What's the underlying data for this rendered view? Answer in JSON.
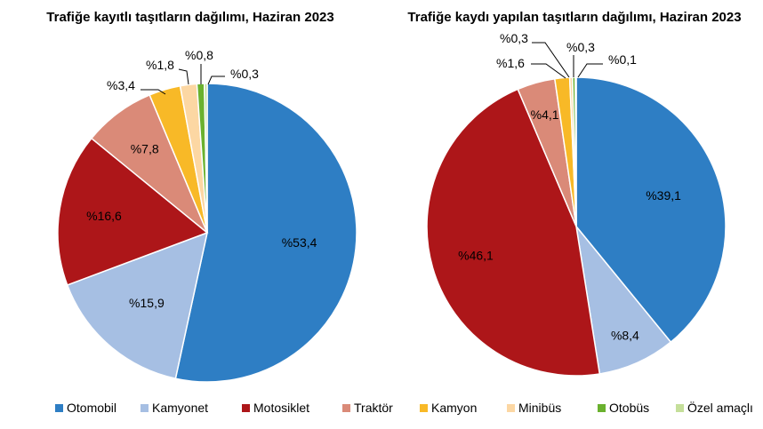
{
  "colors": {
    "Otomobil": "#2e7ec4",
    "Kamyonet": "#a6bfe3",
    "Motosiklet": "#ad1619",
    "Traktör": "#da8a78",
    "Kamyon": "#f8b927",
    "Minibüs": "#fcd7a3",
    "Otobüs": "#6ab12e",
    "Özel amaçlı": "#c5df9a"
  },
  "legend": [
    "Otomobil",
    "Kamyonet",
    "Motosiklet",
    "Traktör",
    "Kamyon",
    "Minibüs",
    "Otobüs",
    "Özel amaçlı"
  ],
  "chart_data": [
    {
      "type": "pie",
      "title": "Trafiğe kayıtlı taşıtların dağılımı, Haziran 2023",
      "categories": [
        "Otomobil",
        "Kamyonet",
        "Motosiklet",
        "Traktör",
        "Kamyon",
        "Minibüs",
        "Otobüs",
        "Özel amaçlı"
      ],
      "values": [
        53.4,
        15.9,
        16.6,
        7.8,
        3.4,
        1.8,
        0.8,
        0.3
      ],
      "labels": [
        "%53,4",
        "%15,9",
        "%16,6",
        "%7,8",
        "%3,4",
        "%1,8",
        "%0,8",
        "%0,3"
      ]
    },
    {
      "type": "pie",
      "title": "Trafiğe kaydı yapılan taşıtların dağılımı, Haziran 2023",
      "categories": [
        "Otomobil",
        "Kamyonet",
        "Motosiklet",
        "Traktör",
        "Kamyon",
        "Minibüs",
        "Otobüs",
        "Özel amaçlı"
      ],
      "values": [
        39.1,
        8.4,
        46.1,
        4.1,
        1.6,
        0.3,
        0.3,
        0.1
      ],
      "labels": [
        "%39,1",
        "%8,4",
        "%46,1",
        "%4,1",
        "%1,6",
        "%0,3",
        "%0,3",
        "%0,1"
      ]
    }
  ]
}
